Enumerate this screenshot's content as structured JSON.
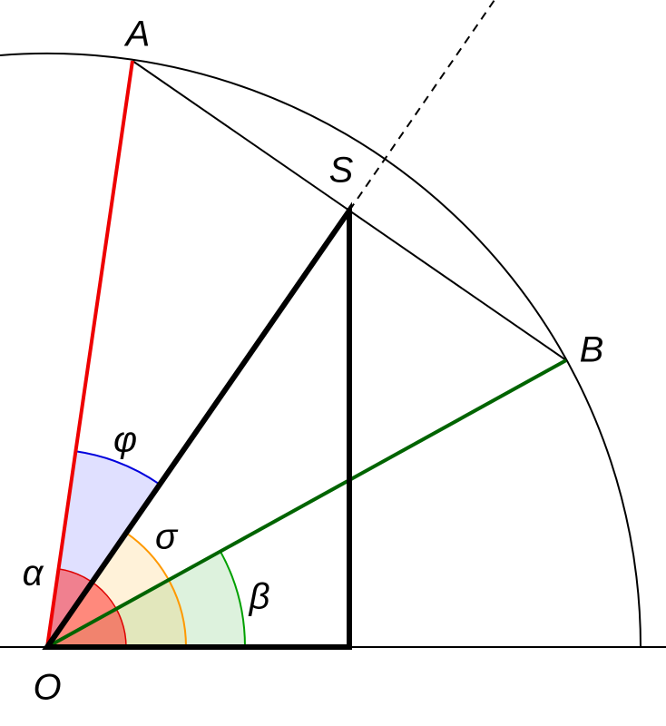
{
  "labels": {
    "A": "A",
    "B": "B",
    "S": "S",
    "O": "O",
    "alpha": "α",
    "beta": "β",
    "sigma": "σ",
    "phi": "φ"
  }
}
